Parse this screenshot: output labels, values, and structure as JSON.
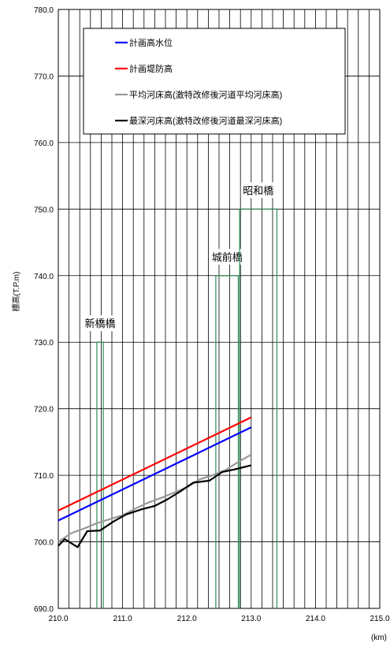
{
  "chart_data": {
    "type": "line",
    "title": "",
    "xlabel": "",
    "x_unit": "(km)",
    "ylabel": "標高(T.P.m)",
    "xlim": [
      210.0,
      215.0
    ],
    "ylim": [
      690.0,
      780.0
    ],
    "x_ticks": [
      "210.0",
      "211.0",
      "212.0",
      "213.0",
      "214.0",
      "215.0"
    ],
    "y_ticks": [
      "690.0",
      "700.0",
      "710.0",
      "720.0",
      "730.0",
      "740.0",
      "750.0",
      "760.0",
      "770.0",
      "780.0"
    ],
    "grid": true,
    "legend_position": "top",
    "series": [
      {
        "name": "計画高水位",
        "color": "#0000ff",
        "points": [
          [
            210.0,
            703.2
          ],
          [
            213.0,
            717.2
          ]
        ]
      },
      {
        "name": "計画堤防高",
        "color": "#ff0000",
        "points": [
          [
            210.0,
            704.7
          ],
          [
            213.0,
            718.7
          ]
        ]
      },
      {
        "name": "平均河床高(激特改修後河道平均河床高)",
        "color": "#999999",
        "points": [
          [
            210.0,
            700.0
          ],
          [
            210.2,
            701.3
          ],
          [
            210.4,
            702.0
          ],
          [
            210.6,
            702.8
          ],
          [
            210.8,
            703.4
          ],
          [
            211.0,
            704.0
          ],
          [
            211.2,
            705.0
          ],
          [
            211.4,
            705.9
          ],
          [
            211.6,
            706.6
          ],
          [
            211.8,
            707.4
          ],
          [
            212.0,
            708.2
          ],
          [
            212.2,
            709.4
          ],
          [
            212.4,
            710.0
          ],
          [
            212.6,
            710.8
          ],
          [
            212.8,
            712.0
          ],
          [
            213.0,
            713.1
          ]
        ]
      },
      {
        "name": "最深河床高(激特改修後河道最深河床高)",
        "color": "#000000",
        "points": [
          [
            210.0,
            699.4
          ],
          [
            210.1,
            700.4
          ],
          [
            210.3,
            699.2
          ],
          [
            210.45,
            701.6
          ],
          [
            210.65,
            701.7
          ],
          [
            210.85,
            703.0
          ],
          [
            211.05,
            704.1
          ],
          [
            211.3,
            704.9
          ],
          [
            211.5,
            705.4
          ],
          [
            211.7,
            706.4
          ],
          [
            211.9,
            707.6
          ],
          [
            212.1,
            708.9
          ],
          [
            212.35,
            709.2
          ],
          [
            212.55,
            710.5
          ],
          [
            212.75,
            710.9
          ],
          [
            213.0,
            711.5
          ]
        ]
      }
    ],
    "bridges": [
      {
        "name": "新橋橋",
        "x_left": 210.6,
        "x_right": 210.7,
        "top": 730.0
      },
      {
        "name": "城前橋",
        "x_left": 212.45,
        "x_right": 212.8,
        "top": 740.0
      },
      {
        "name": "昭和橋",
        "x_left": 212.82,
        "x_right": 213.4,
        "top": 750.0
      }
    ],
    "bridge_color": "#2e8b57"
  }
}
